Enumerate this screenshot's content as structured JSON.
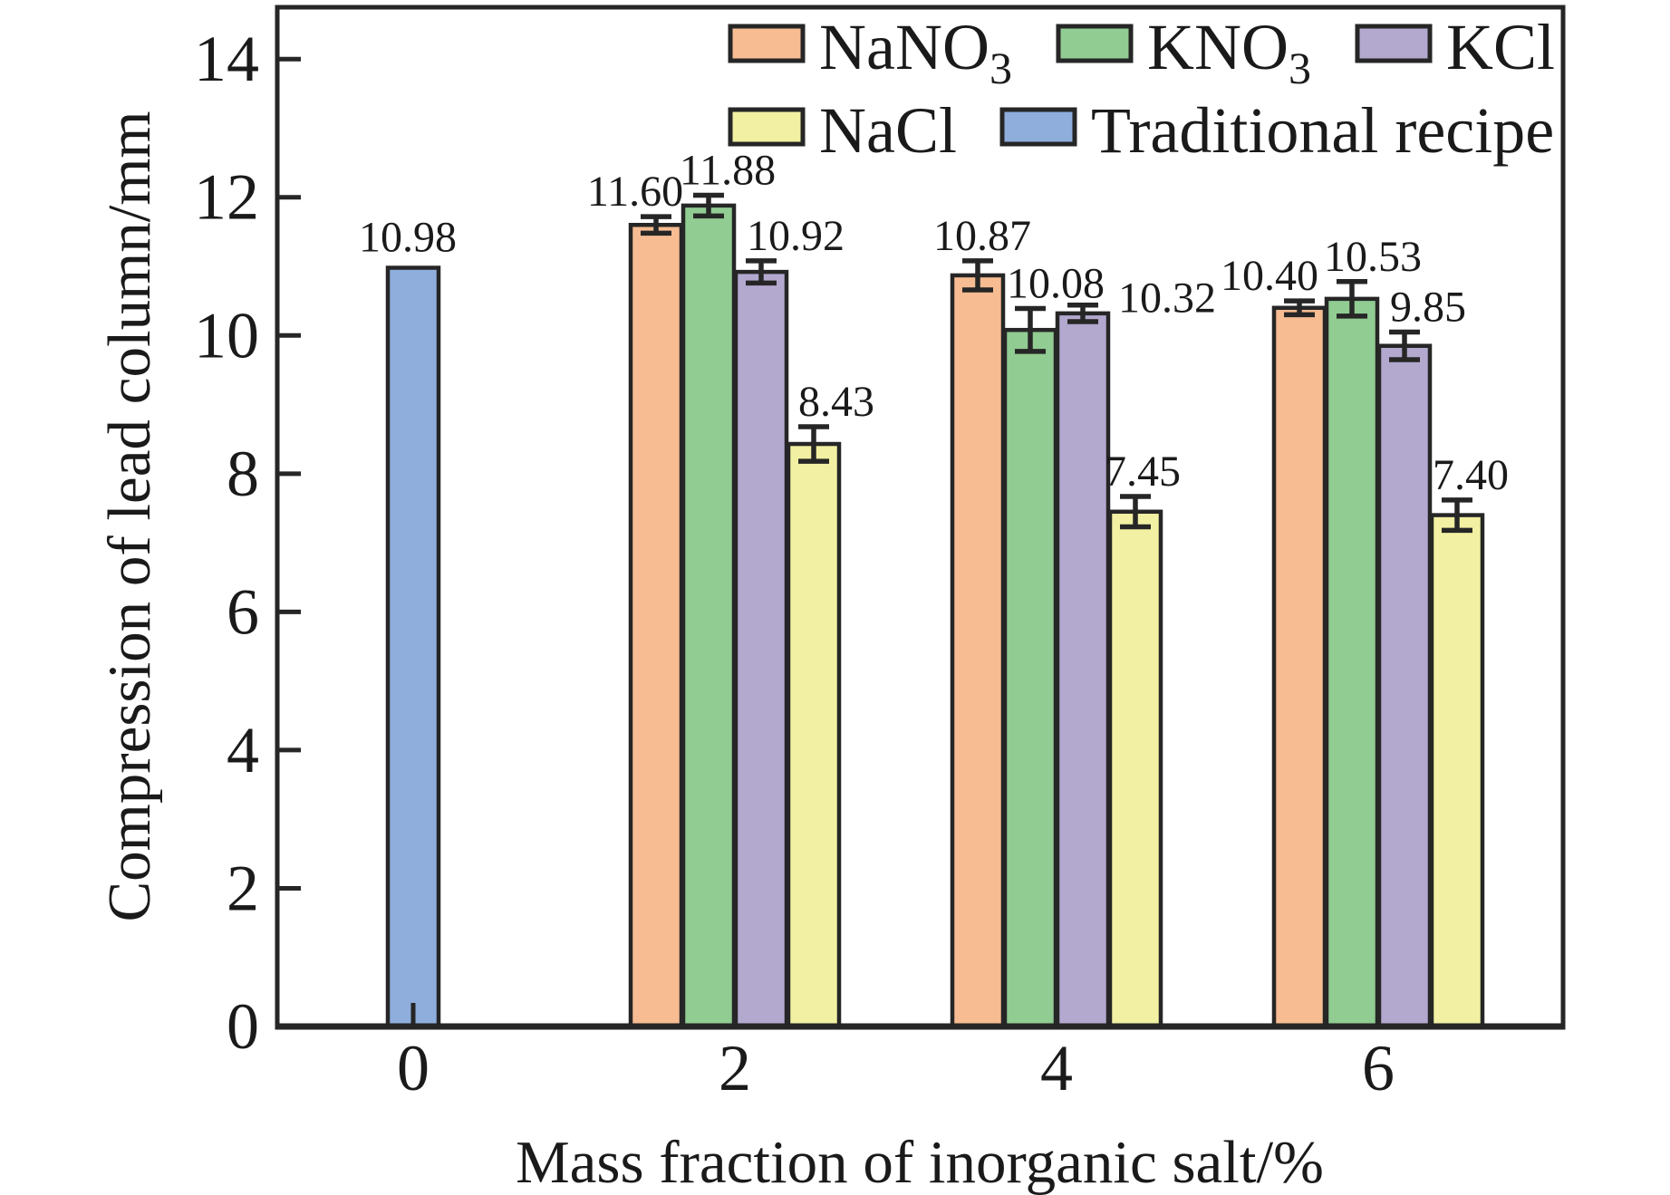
{
  "chart_data": {
    "type": "bar",
    "title": "",
    "xlabel": "Mass fraction of inorganic salt/%",
    "ylabel": "Compression of lead column/mm",
    "x_groups": [
      0,
      2,
      4,
      6
    ],
    "x_tick_labels": [
      "0",
      "2",
      "4",
      "6"
    ],
    "y_ticks": [
      0,
      2,
      4,
      6,
      8,
      10,
      12,
      14
    ],
    "y_tick_labels": [
      "0",
      "2",
      "4",
      "6",
      "8",
      "10",
      "12",
      "14"
    ],
    "ylim": [
      0,
      14.75
    ],
    "grid": false,
    "legend_position": "top-inside",
    "axis_color": "#262626",
    "text_color": "#1a1a1a",
    "series": [
      {
        "name": "NaNO3",
        "legend_base": "NaNO",
        "legend_sub": "3",
        "color": "#F7BC92",
        "x": [
          2,
          4,
          6
        ],
        "values": [
          11.6,
          10.87,
          10.4
        ],
        "errors": [
          0.12,
          0.21,
          0.1
        ],
        "labels": [
          "11.60",
          "10.87",
          "10.40"
        ]
      },
      {
        "name": "KNO3",
        "legend_base": "KNO",
        "legend_sub": "3",
        "color": "#91CC93",
        "x": [
          2,
          4,
          6
        ],
        "values": [
          11.88,
          10.08,
          10.53
        ],
        "errors": [
          0.15,
          0.31,
          0.25
        ],
        "labels": [
          "11.88",
          "10.08",
          "10.53"
        ]
      },
      {
        "name": "KCl",
        "legend_base": "KCl",
        "legend_sub": "",
        "color": "#B3A9CF",
        "x": [
          2,
          4,
          6
        ],
        "values": [
          10.92,
          10.32,
          9.85
        ],
        "errors": [
          0.16,
          0.12,
          0.2
        ],
        "labels": [
          "10.92",
          "10.32",
          "9.85"
        ]
      },
      {
        "name": "NaCl",
        "legend_base": "NaCl",
        "legend_sub": "",
        "color": "#F2F0A2",
        "x": [
          2,
          4,
          6
        ],
        "values": [
          8.43,
          7.45,
          7.4
        ],
        "errors": [
          0.25,
          0.22,
          0.22
        ],
        "labels": [
          "8.43",
          "7.45",
          "7.40"
        ]
      },
      {
        "name": "Traditional recipe",
        "legend_base": "Traditional recipe",
        "legend_sub": "",
        "color": "#8FAEDC",
        "x": [
          0
        ],
        "values": [
          10.98
        ],
        "errors": [
          0
        ],
        "labels": [
          "10.98"
        ]
      }
    ]
  }
}
